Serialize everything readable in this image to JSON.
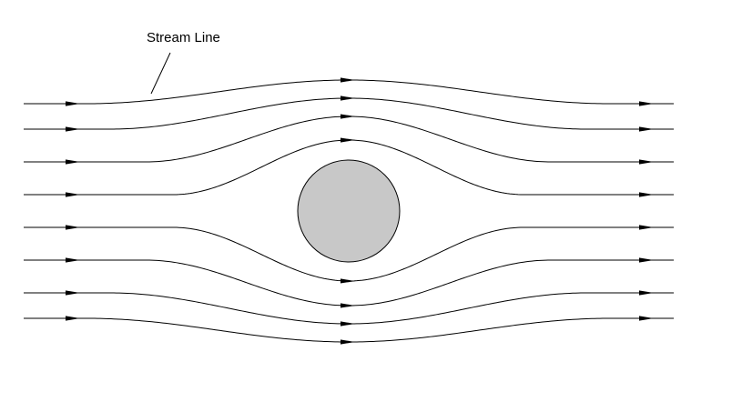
{
  "diagram": {
    "label": "Stream Line",
    "colors": {
      "background": "#ffffff",
      "line": "#000000",
      "obstacle_fill": "#c8c8c8",
      "obstacle_stroke": "#000000"
    },
    "obstacle": "circle",
    "streamline_count": 8,
    "arrow_direction": "left-to-right"
  }
}
